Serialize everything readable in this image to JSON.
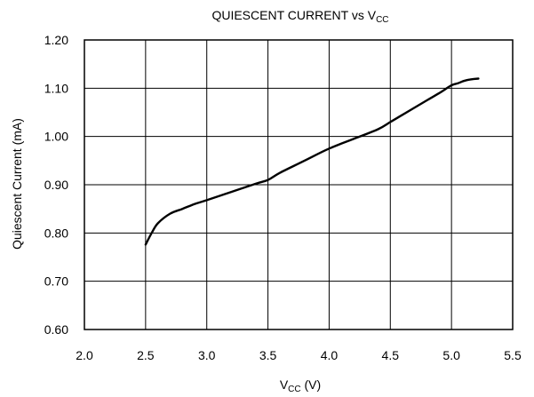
{
  "chart_data": {
    "type": "line",
    "title": {
      "main": "QUIESCENT CURRENT vs V",
      "sub": "CC"
    },
    "xlabel": {
      "main": "V",
      "sub": "CC",
      "suffix": " (V)"
    },
    "ylabel": "Quiescent Current (mA)",
    "xlim": [
      2.0,
      5.5
    ],
    "ylim": [
      0.6,
      1.2
    ],
    "x_ticks": [
      "2.0",
      "2.5",
      "3.0",
      "3.5",
      "4.0",
      "4.5",
      "5.0",
      "5.5"
    ],
    "y_ticks": [
      "0.60",
      "0.70",
      "0.80",
      "0.90",
      "1.00",
      "1.10",
      "1.20"
    ],
    "grid": true,
    "line_color": "#000000",
    "series": [
      {
        "x": [
          2.5,
          2.55,
          2.6,
          2.7,
          2.8,
          2.9,
          3.0,
          3.2,
          3.4,
          3.5,
          3.6,
          3.8,
          4.0,
          4.2,
          4.4,
          4.5,
          4.6,
          4.8,
          4.9,
          5.0,
          5.05,
          5.1,
          5.15,
          5.22
        ],
        "y": [
          0.776,
          0.8,
          0.82,
          0.84,
          0.85,
          0.86,
          0.868,
          0.885,
          0.902,
          0.91,
          0.925,
          0.95,
          0.975,
          0.995,
          1.015,
          1.03,
          1.045,
          1.075,
          1.09,
          1.106,
          1.11,
          1.115,
          1.118,
          1.12
        ]
      }
    ]
  }
}
